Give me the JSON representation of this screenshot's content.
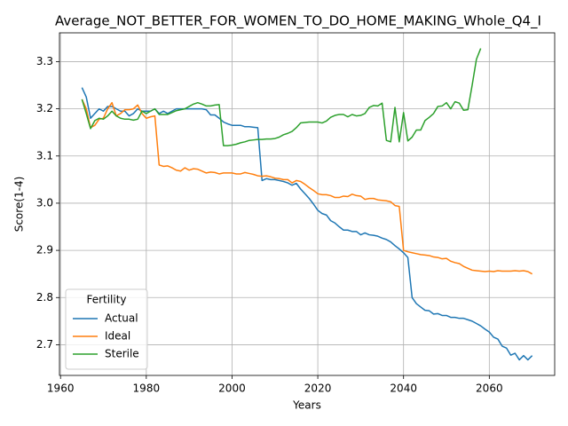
{
  "chart_data": {
    "type": "line",
    "title": "Average_NOT_BETTER_FOR_WOMEN_TO_DO_HOME_MAKING_Whole_Q4_I",
    "xlabel": "Years",
    "ylabel": "Score(1-4)",
    "x": [
      1965,
      1966,
      1967,
      1968,
      1969,
      1970,
      1971,
      1972,
      1973,
      1974,
      1975,
      1976,
      1977,
      1978,
      1979,
      1980,
      1981,
      1982,
      1983,
      1984,
      1985,
      1986,
      1987,
      1988,
      1989,
      1990,
      1991,
      1992,
      1993,
      1994,
      1995,
      1996,
      1997,
      1998,
      1999,
      2000,
      2001,
      2002,
      2003,
      2004,
      2005,
      2006,
      2007,
      2008,
      2009,
      2010,
      2011,
      2012,
      2013,
      2014,
      2015,
      2016,
      2017,
      2018,
      2019,
      2020,
      2021,
      2022,
      2023,
      2024,
      2025,
      2026,
      2027,
      2028,
      2029,
      2030,
      2031,
      2032,
      2033,
      2034,
      2035,
      2036,
      2037,
      2038,
      2039,
      2040,
      2041,
      2042,
      2043,
      2044,
      2045,
      2046,
      2047,
      2048,
      2049,
      2050,
      2051,
      2052,
      2053,
      2054,
      2055,
      2056,
      2057,
      2058,
      2059,
      2060,
      2061,
      2062,
      2063,
      2064,
      2065,
      2066,
      2067,
      2068,
      2069,
      2070
    ],
    "series": [
      {
        "name": "Actual",
        "color": "#1f77b4",
        "values": [
          3.245,
          3.225,
          3.18,
          3.19,
          3.2,
          3.195,
          3.205,
          3.205,
          3.2,
          3.195,
          3.195,
          3.185,
          3.19,
          3.2,
          3.195,
          3.195,
          3.195,
          3.2,
          3.19,
          3.195,
          3.19,
          3.195,
          3.2,
          3.2,
          3.2,
          3.2,
          3.2,
          3.2,
          3.2,
          3.198,
          3.187,
          3.187,
          3.18,
          3.172,
          3.168,
          3.165,
          3.165,
          3.165,
          3.162,
          3.162,
          3.161,
          3.16,
          3.048,
          3.052,
          3.05,
          3.05,
          3.048,
          3.046,
          3.043,
          3.038,
          3.042,
          3.03,
          3.02,
          3.01,
          2.998,
          2.985,
          2.978,
          2.975,
          2.963,
          2.958,
          2.95,
          2.943,
          2.943,
          2.94,
          2.94,
          2.933,
          2.937,
          2.933,
          2.932,
          2.93,
          2.926,
          2.923,
          2.918,
          2.91,
          2.903,
          2.895,
          2.885,
          2.8,
          2.787,
          2.78,
          2.773,
          2.772,
          2.765,
          2.766,
          2.762,
          2.762,
          2.758,
          2.758,
          2.756,
          2.756,
          2.753,
          2.75,
          2.745,
          2.74,
          2.733,
          2.727,
          2.716,
          2.712,
          2.697,
          2.693,
          2.678,
          2.682,
          2.668,
          2.677,
          2.668,
          2.677
        ]
      },
      {
        "name": "Ideal",
        "color": "#ff7f0e",
        "values": [
          3.22,
          3.2,
          3.16,
          3.165,
          3.178,
          3.18,
          3.2,
          3.213,
          3.185,
          3.19,
          3.198,
          3.198,
          3.2,
          3.208,
          3.19,
          3.18,
          3.183,
          3.185,
          3.081,
          3.078,
          3.079,
          3.075,
          3.07,
          3.068,
          3.075,
          3.07,
          3.073,
          3.072,
          3.068,
          3.064,
          3.066,
          3.065,
          3.062,
          3.064,
          3.064,
          3.064,
          3.062,
          3.062,
          3.065,
          3.063,
          3.061,
          3.058,
          3.057,
          3.058,
          3.056,
          3.053,
          3.052,
          3.05,
          3.05,
          3.043,
          3.048,
          3.046,
          3.04,
          3.033,
          3.027,
          3.02,
          3.018,
          3.018,
          3.016,
          3.012,
          3.012,
          3.015,
          3.014,
          3.019,
          3.016,
          3.015,
          3.008,
          3.01,
          3.01,
          3.007,
          3.006,
          3.005,
          3.003,
          2.995,
          2.993,
          2.9,
          2.897,
          2.895,
          2.893,
          2.891,
          2.89,
          2.889,
          2.886,
          2.885,
          2.882,
          2.883,
          2.877,
          2.874,
          2.872,
          2.866,
          2.862,
          2.858,
          2.857,
          2.856,
          2.855,
          2.856,
          2.855,
          2.857,
          2.856,
          2.856,
          2.856,
          2.857,
          2.856,
          2.857,
          2.855,
          2.85
        ]
      },
      {
        "name": "Sterile",
        "color": "#2ca02c",
        "values": [
          3.22,
          3.19,
          3.158,
          3.175,
          3.18,
          3.178,
          3.185,
          3.195,
          3.185,
          3.18,
          3.178,
          3.178,
          3.176,
          3.178,
          3.195,
          3.19,
          3.195,
          3.2,
          3.188,
          3.188,
          3.188,
          3.192,
          3.196,
          3.198,
          3.2,
          3.205,
          3.21,
          3.213,
          3.21,
          3.206,
          3.206,
          3.208,
          3.209,
          3.122,
          3.122,
          3.123,
          3.125,
          3.128,
          3.13,
          3.133,
          3.134,
          3.135,
          3.135,
          3.136,
          3.136,
          3.137,
          3.14,
          3.145,
          3.148,
          3.152,
          3.16,
          3.17,
          3.171,
          3.172,
          3.172,
          3.172,
          3.17,
          3.174,
          3.182,
          3.186,
          3.188,
          3.188,
          3.183,
          3.188,
          3.185,
          3.186,
          3.19,
          3.203,
          3.207,
          3.206,
          3.212,
          3.133,
          3.13,
          3.203,
          3.13,
          3.192,
          3.132,
          3.14,
          3.155,
          3.155,
          3.175,
          3.182,
          3.19,
          3.205,
          3.206,
          3.213,
          3.2,
          3.215,
          3.212,
          3.197,
          3.198,
          3.25,
          3.305,
          3.328,
          null,
          null,
          null,
          null,
          null,
          null,
          null,
          null,
          null,
          null,
          null,
          null
        ]
      }
    ],
    "xlim": [
      1959.75,
      2075.25
    ],
    "xticks": [
      1960,
      1980,
      2000,
      2020,
      2040,
      2060
    ],
    "ylim": [
      2.635,
      3.361
    ],
    "yticks": [
      2.7,
      2.8,
      2.9,
      {
        "value": 3.0,
        "label": "3.0"
      },
      3.1,
      3.2,
      3.3
    ],
    "grid": true,
    "legend": {
      "title": "Fertility",
      "loc": "lower left"
    }
  }
}
